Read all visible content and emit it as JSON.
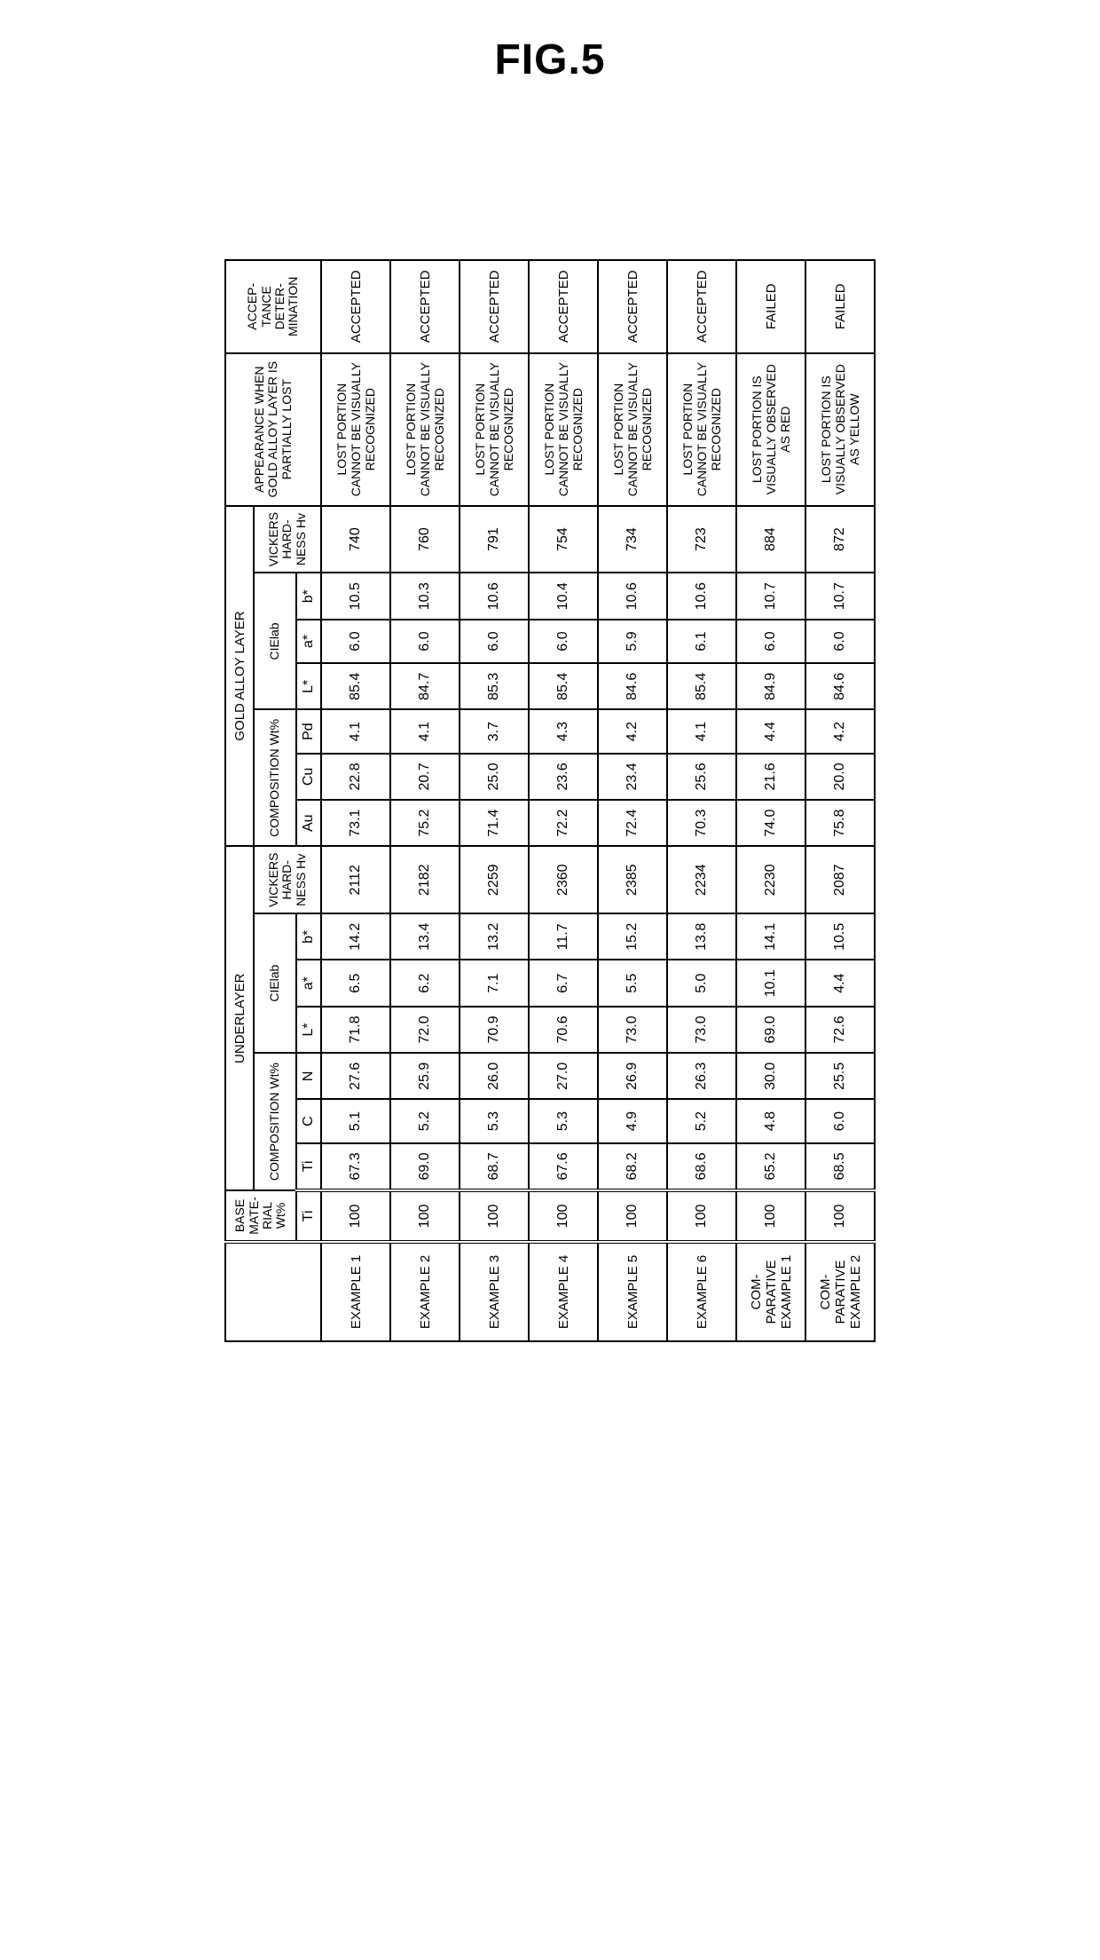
{
  "figure_label": "FIG.5",
  "headers": {
    "row_label_blank": "",
    "base_material": "BASE MATE-RIAL Wt%",
    "underlayer": "UNDERLAYER",
    "gold_alloy_layer": "GOLD ALLOY LAYER",
    "appearance": "APPEARANCE WHEN GOLD ALLOY LAYER IS PARTIALLY LOST",
    "determination": "ACCEP-TANCE DETER-MINATION",
    "composition_wt": "COMPOSITION Wt%",
    "cielab": "CIElab",
    "vickers": "VICKERS HARD-NESS Hv",
    "ti": "Ti",
    "c": "C",
    "n": "N",
    "l_star": "L*",
    "a_star": "a*",
    "b_star": "b*",
    "au": "Au",
    "cu": "Cu",
    "pd": "Pd"
  },
  "rows": [
    {
      "label": "EXAMPLE 1",
      "base_ti": "100",
      "u_ti": "67.3",
      "u_c": "5.1",
      "u_n": "27.6",
      "u_l": "71.8",
      "u_a": "6.5",
      "u_b": "14.2",
      "u_hv": "2112",
      "g_au": "73.1",
      "g_cu": "22.8",
      "g_pd": "4.1",
      "g_l": "85.4",
      "g_a": "6.0",
      "g_b": "10.5",
      "g_hv": "740",
      "appearance": "LOST PORTION CANNOT BE VISUALLY RECOGNIZED",
      "det": "ACCEPTED"
    },
    {
      "label": "EXAMPLE 2",
      "base_ti": "100",
      "u_ti": "69.0",
      "u_c": "5.2",
      "u_n": "25.9",
      "u_l": "72.0",
      "u_a": "6.2",
      "u_b": "13.4",
      "u_hv": "2182",
      "g_au": "75.2",
      "g_cu": "20.7",
      "g_pd": "4.1",
      "g_l": "84.7",
      "g_a": "6.0",
      "g_b": "10.3",
      "g_hv": "760",
      "appearance": "LOST PORTION CANNOT BE VISUALLY RECOGNIZED",
      "det": "ACCEPTED"
    },
    {
      "label": "EXAMPLE 3",
      "base_ti": "100",
      "u_ti": "68.7",
      "u_c": "5.3",
      "u_n": "26.0",
      "u_l": "70.9",
      "u_a": "7.1",
      "u_b": "13.2",
      "u_hv": "2259",
      "g_au": "71.4",
      "g_cu": "25.0",
      "g_pd": "3.7",
      "g_l": "85.3",
      "g_a": "6.0",
      "g_b": "10.6",
      "g_hv": "791",
      "appearance": "LOST PORTION CANNOT BE VISUALLY RECOGNIZED",
      "det": "ACCEPTED"
    },
    {
      "label": "EXAMPLE 4",
      "base_ti": "100",
      "u_ti": "67.6",
      "u_c": "5.3",
      "u_n": "27.0",
      "u_l": "70.6",
      "u_a": "6.7",
      "u_b": "11.7",
      "u_hv": "2360",
      "g_au": "72.2",
      "g_cu": "23.6",
      "g_pd": "4.3",
      "g_l": "85.4",
      "g_a": "6.0",
      "g_b": "10.4",
      "g_hv": "754",
      "appearance": "LOST PORTION CANNOT BE VISUALLY RECOGNIZED",
      "det": "ACCEPTED"
    },
    {
      "label": "EXAMPLE 5",
      "base_ti": "100",
      "u_ti": "68.2",
      "u_c": "4.9",
      "u_n": "26.9",
      "u_l": "73.0",
      "u_a": "5.5",
      "u_b": "15.2",
      "u_hv": "2385",
      "g_au": "72.4",
      "g_cu": "23.4",
      "g_pd": "4.2",
      "g_l": "84.6",
      "g_a": "5.9",
      "g_b": "10.6",
      "g_hv": "734",
      "appearance": "LOST PORTION CANNOT BE VISUALLY RECOGNIZED",
      "det": "ACCEPTED"
    },
    {
      "label": "EXAMPLE 6",
      "base_ti": "100",
      "u_ti": "68.6",
      "u_c": "5.2",
      "u_n": "26.3",
      "u_l": "73.0",
      "u_a": "5.0",
      "u_b": "13.8",
      "u_hv": "2234",
      "g_au": "70.3",
      "g_cu": "25.6",
      "g_pd": "4.1",
      "g_l": "85.4",
      "g_a": "6.1",
      "g_b": "10.6",
      "g_hv": "723",
      "appearance": "LOST PORTION CANNOT BE VISUALLY RECOGNIZED",
      "det": "ACCEPTED"
    },
    {
      "label": "COM-PARATIVE EXAMPLE 1",
      "base_ti": "100",
      "u_ti": "65.2",
      "u_c": "4.8",
      "u_n": "30.0",
      "u_l": "69.0",
      "u_a": "10.1",
      "u_b": "14.1",
      "u_hv": "2230",
      "g_au": "74.0",
      "g_cu": "21.6",
      "g_pd": "4.4",
      "g_l": "84.9",
      "g_a": "6.0",
      "g_b": "10.7",
      "g_hv": "884",
      "appearance": "LOST PORTION IS VISUALLY OBSERVED AS RED",
      "det": "FAILED"
    },
    {
      "label": "COM-PARATIVE EXAMPLE 2",
      "base_ti": "100",
      "u_ti": "68.5",
      "u_c": "6.0",
      "u_n": "25.5",
      "u_l": "72.6",
      "u_a": "4.4",
      "u_b": "10.5",
      "u_hv": "2087",
      "g_au": "75.8",
      "g_cu": "20.0",
      "g_pd": "4.2",
      "g_l": "84.6",
      "g_a": "6.0",
      "g_b": "10.7",
      "g_hv": "872",
      "appearance": "LOST PORTION IS VISUALLY OBSERVED AS YELLOW",
      "det": "FAILED"
    }
  ]
}
